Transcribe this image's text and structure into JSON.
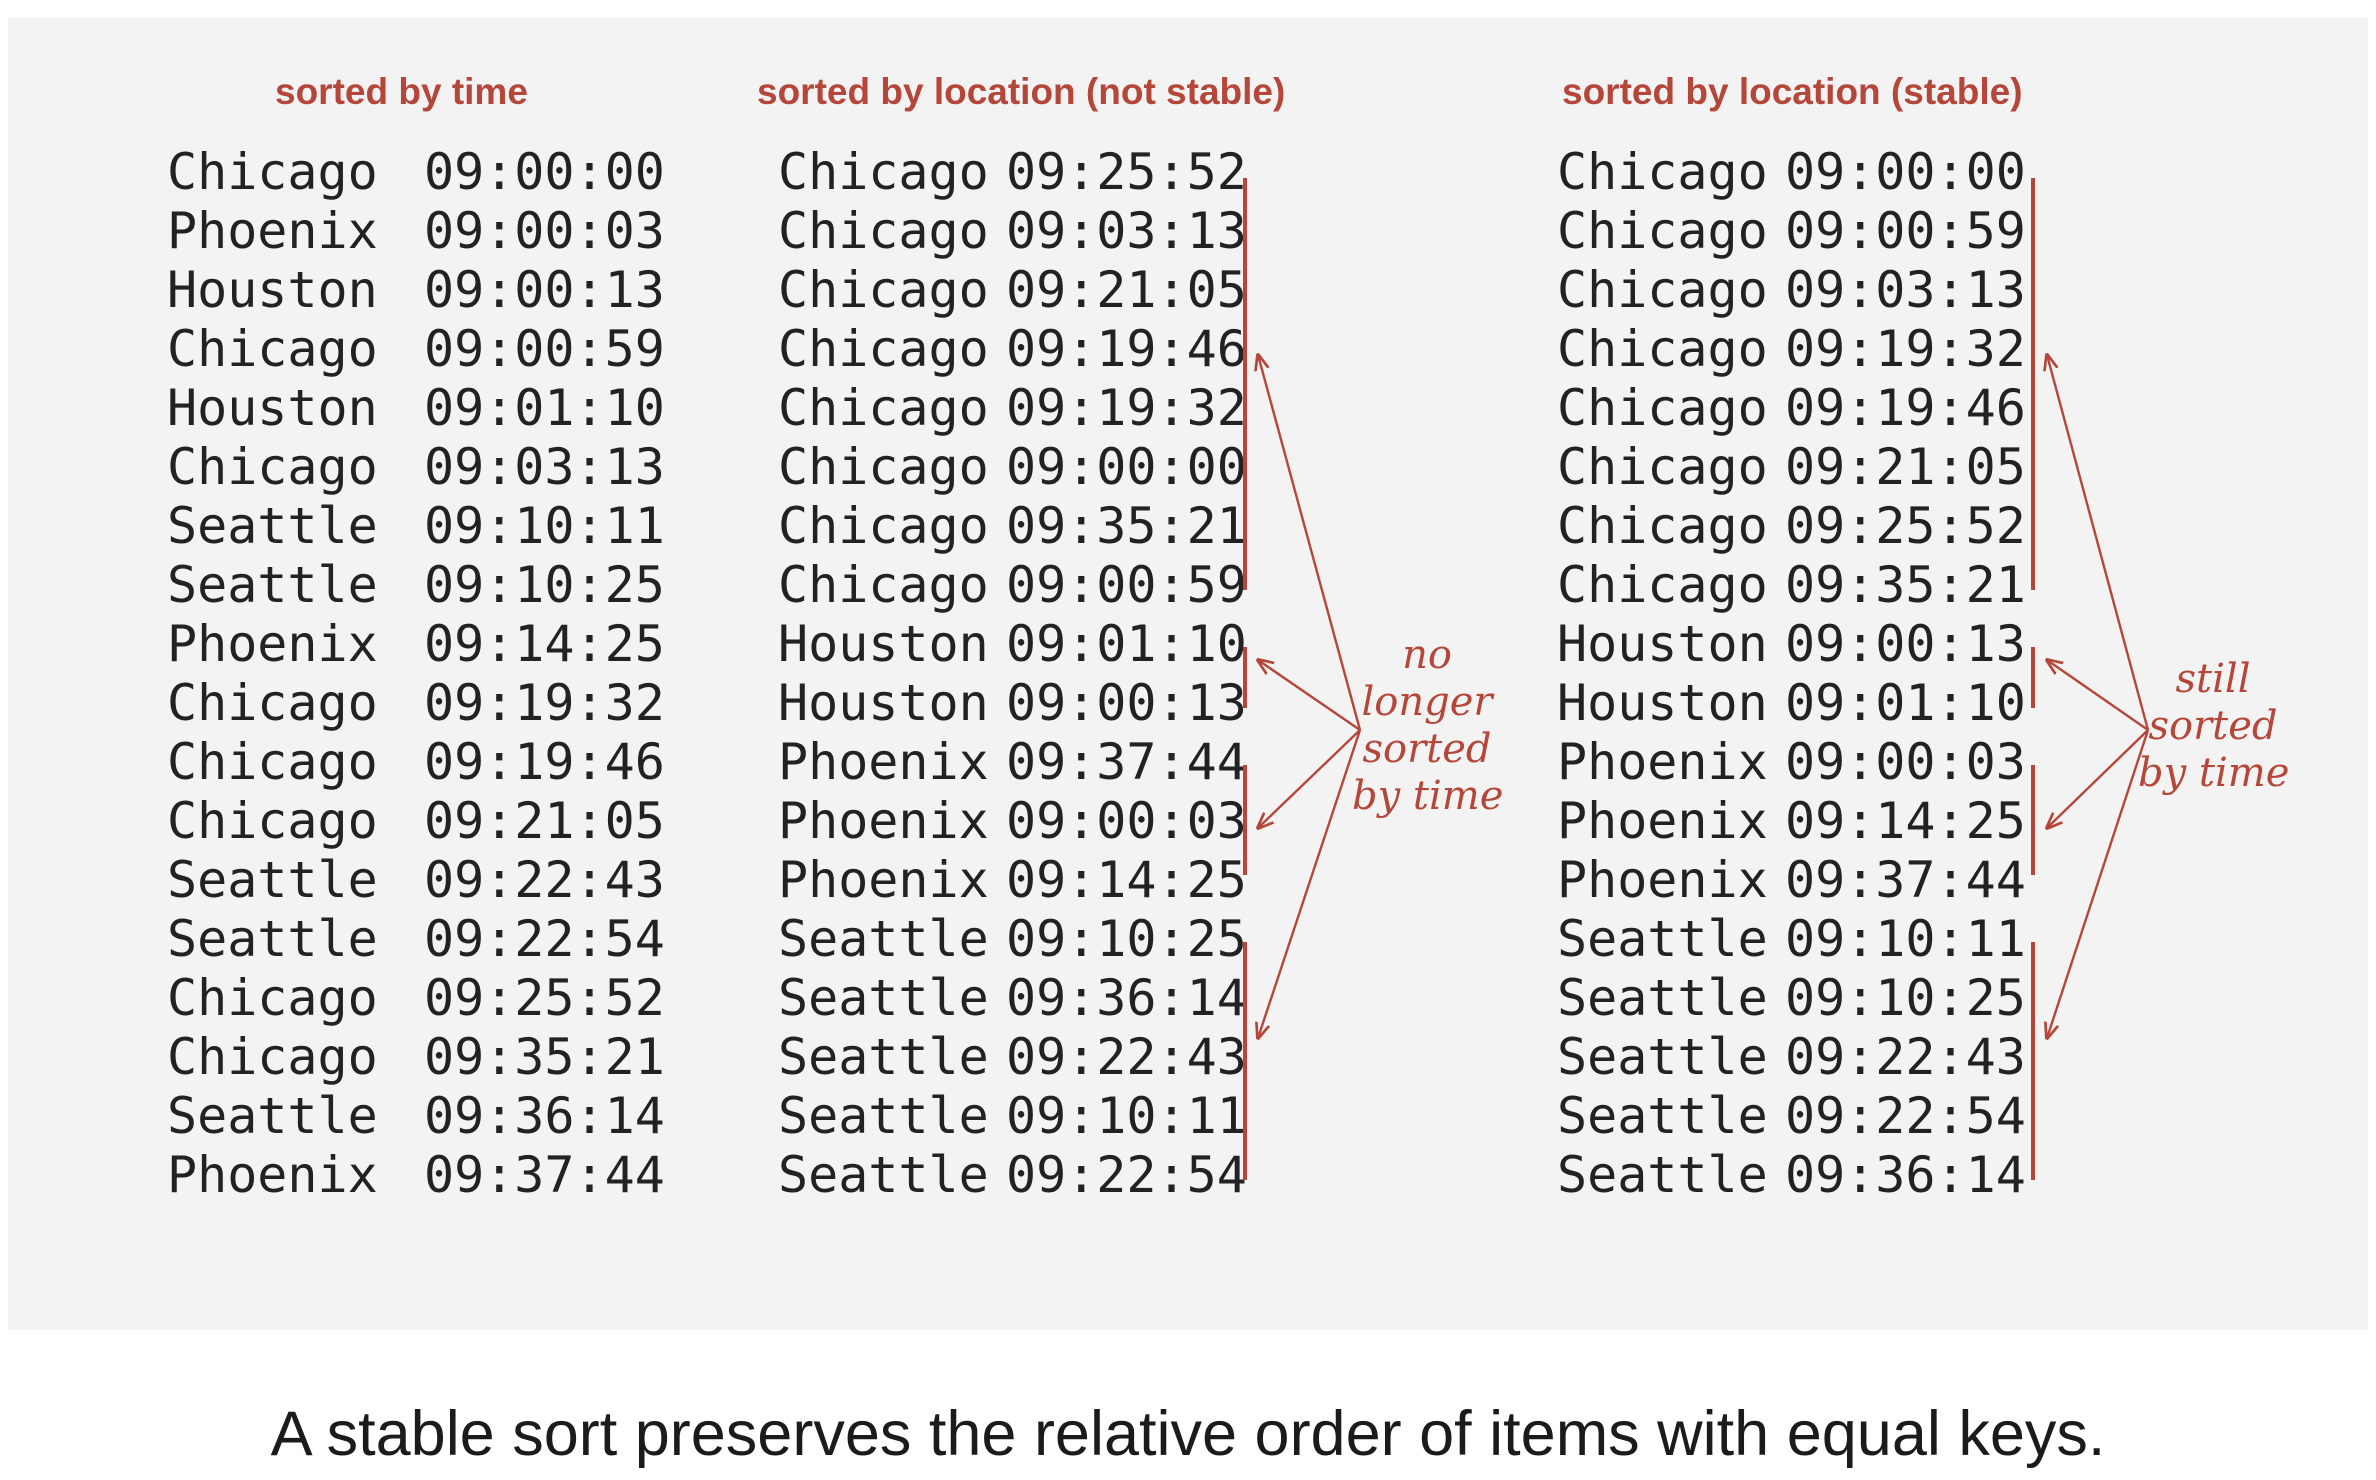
{
  "columns": {
    "by_time": {
      "title": "sorted by time",
      "rows": [
        {
          "city": "Chicago",
          "time": "09:00:00"
        },
        {
          "city": "Phoenix",
          "time": "09:00:03"
        },
        {
          "city": "Houston",
          "time": "09:00:13"
        },
        {
          "city": "Chicago",
          "time": "09:00:59"
        },
        {
          "city": "Houston",
          "time": "09:01:10"
        },
        {
          "city": "Chicago",
          "time": "09:03:13"
        },
        {
          "city": "Seattle",
          "time": "09:10:11"
        },
        {
          "city": "Seattle",
          "time": "09:10:25"
        },
        {
          "city": "Phoenix",
          "time": "09:14:25"
        },
        {
          "city": "Chicago",
          "time": "09:19:32"
        },
        {
          "city": "Chicago",
          "time": "09:19:46"
        },
        {
          "city": "Chicago",
          "time": "09:21:05"
        },
        {
          "city": "Seattle",
          "time": "09:22:43"
        },
        {
          "city": "Seattle",
          "time": "09:22:54"
        },
        {
          "city": "Chicago",
          "time": "09:25:52"
        },
        {
          "city": "Chicago",
          "time": "09:35:21"
        },
        {
          "city": "Seattle",
          "time": "09:36:14"
        },
        {
          "city": "Phoenix",
          "time": "09:37:44"
        }
      ]
    },
    "by_location_unstable": {
      "title": "sorted by location (not stable)",
      "rows": [
        {
          "city": "Chicago",
          "time": "09:25:52"
        },
        {
          "city": "Chicago",
          "time": "09:03:13"
        },
        {
          "city": "Chicago",
          "time": "09:21:05"
        },
        {
          "city": "Chicago",
          "time": "09:19:46"
        },
        {
          "city": "Chicago",
          "time": "09:19:32"
        },
        {
          "city": "Chicago",
          "time": "09:00:00"
        },
        {
          "city": "Chicago",
          "time": "09:35:21"
        },
        {
          "city": "Chicago",
          "time": "09:00:59"
        },
        {
          "city": "Houston",
          "time": "09:01:10"
        },
        {
          "city": "Houston",
          "time": "09:00:13"
        },
        {
          "city": "Phoenix",
          "time": "09:37:44"
        },
        {
          "city": "Phoenix",
          "time": "09:00:03"
        },
        {
          "city": "Phoenix",
          "time": "09:14:25"
        },
        {
          "city": "Seattle",
          "time": "09:10:25"
        },
        {
          "city": "Seattle",
          "time": "09:36:14"
        },
        {
          "city": "Seattle",
          "time": "09:22:43"
        },
        {
          "city": "Seattle",
          "time": "09:10:11"
        },
        {
          "city": "Seattle",
          "time": "09:22:54"
        }
      ]
    },
    "by_location_stable": {
      "title": "sorted by location (stable)",
      "rows": [
        {
          "city": "Chicago",
          "time": "09:00:00"
        },
        {
          "city": "Chicago",
          "time": "09:00:59"
        },
        {
          "city": "Chicago",
          "time": "09:03:13"
        },
        {
          "city": "Chicago",
          "time": "09:19:32"
        },
        {
          "city": "Chicago",
          "time": "09:19:46"
        },
        {
          "city": "Chicago",
          "time": "09:21:05"
        },
        {
          "city": "Chicago",
          "time": "09:25:52"
        },
        {
          "city": "Chicago",
          "time": "09:35:21"
        },
        {
          "city": "Houston",
          "time": "09:00:13"
        },
        {
          "city": "Houston",
          "time": "09:01:10"
        },
        {
          "city": "Phoenix",
          "time": "09:00:03"
        },
        {
          "city": "Phoenix",
          "time": "09:14:25"
        },
        {
          "city": "Phoenix",
          "time": "09:37:44"
        },
        {
          "city": "Seattle",
          "time": "09:10:11"
        },
        {
          "city": "Seattle",
          "time": "09:10:25"
        },
        {
          "city": "Seattle",
          "time": "09:22:43"
        },
        {
          "city": "Seattle",
          "time": "09:22:54"
        },
        {
          "city": "Seattle",
          "time": "09:36:14"
        }
      ]
    }
  },
  "annotations": {
    "unstable": [
      "no",
      "longer",
      "sorted",
      "by time"
    ],
    "stable": [
      "still",
      "sorted",
      "by time"
    ]
  },
  "caption": "A stable sort preserves the relative order of items with equal keys.",
  "colors": {
    "accent": "#b5473a",
    "text": "#222222",
    "panel": "#f3f3f3"
  }
}
